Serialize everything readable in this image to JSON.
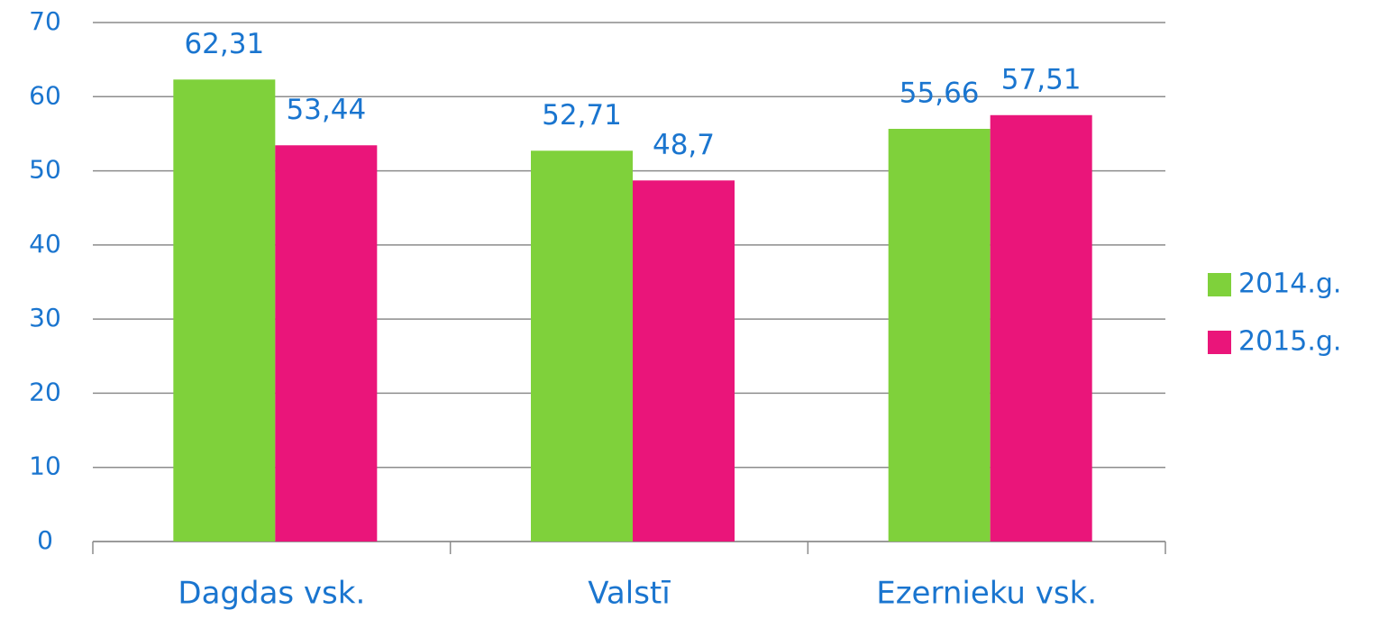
{
  "chart_data": {
    "type": "bar",
    "categories": [
      "Dagdas vsk.",
      "Valstī",
      "Ezernieku vsk."
    ],
    "series": [
      {
        "name": "2014.g.",
        "color": "#7fd13b",
        "values": [
          62.31,
          52.71,
          55.66
        ],
        "value_labels": [
          "62,31",
          "52,71",
          "55,66"
        ]
      },
      {
        "name": "2015.g.",
        "color": "#ea157a",
        "values": [
          53.44,
          48.7,
          57.51
        ],
        "value_labels": [
          "53,44",
          "48,7",
          "57,51"
        ]
      }
    ],
    "ylim": [
      0,
      70
    ],
    "yticks": [
      0,
      10,
      20,
      30,
      40,
      50,
      60,
      70
    ],
    "grid": true,
    "legend": "right"
  }
}
